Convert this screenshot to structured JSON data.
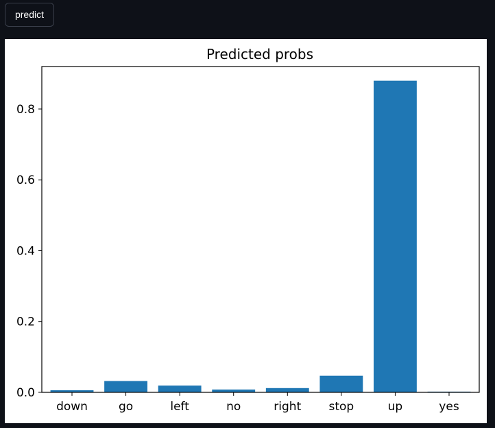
{
  "toolbar": {
    "predict_label": "predict"
  },
  "chart_data": {
    "type": "bar",
    "title": "Predicted probs",
    "xlabel": "",
    "ylabel": "",
    "categories": [
      "down",
      "go",
      "left",
      "no",
      "right",
      "stop",
      "up",
      "yes"
    ],
    "values": [
      0.006,
      0.032,
      0.019,
      0.008,
      0.012,
      0.047,
      0.88,
      0.002
    ],
    "ylim": [
      0,
      0.92
    ],
    "yticks": [
      0.0,
      0.2,
      0.4,
      0.6,
      0.8
    ],
    "ytick_labels": [
      "0.0",
      "0.2",
      "0.4",
      "0.6",
      "0.8"
    ],
    "bar_color": "#1f77b4",
    "grid": false
  }
}
